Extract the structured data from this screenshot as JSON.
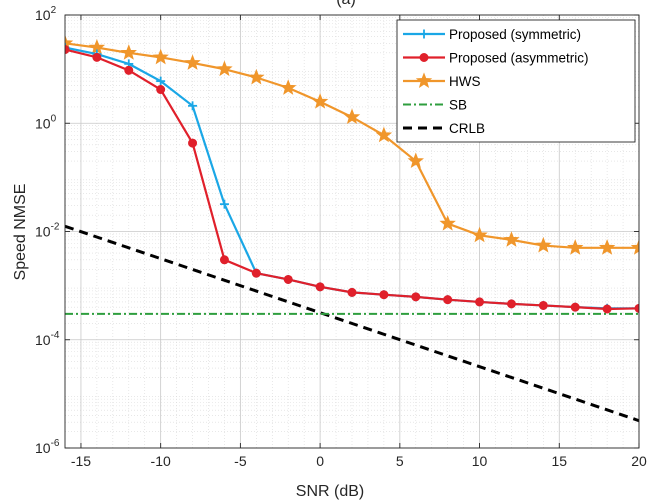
{
  "chart_data": {
    "type": "line",
    "title": "(a)",
    "xlabel": "SNR (dB)",
    "ylabel": "Speed NMSE",
    "xlim": [
      -16,
      20
    ],
    "ylim": [
      1e-06,
      100
    ],
    "yscale": "log",
    "grid": true,
    "minor_grid": true,
    "legend_position": "top-right",
    "x_ticks": [
      -15,
      -10,
      -5,
      0,
      5,
      10,
      15,
      20
    ],
    "x_tick_labels": [
      "-15",
      "-10",
      "-5",
      "0",
      "5",
      "10",
      "15",
      "20"
    ],
    "y_ticks": [
      1e-06,
      0.0001,
      0.01,
      1,
      100
    ],
    "y_tick_labels": [
      {
        "base": "10",
        "exp": "-6"
      },
      {
        "base": "10",
        "exp": "-4"
      },
      {
        "base": "10",
        "exp": "-2"
      },
      {
        "base": "10",
        "exp": "0"
      },
      {
        "base": "10",
        "exp": "2"
      }
    ],
    "series": [
      {
        "name": "Proposed (symmetric)",
        "color": "#1aa7e6",
        "marker": "plus",
        "line_style": "solid",
        "x": [
          -16,
          -14,
          -12,
          -10,
          -8,
          -6,
          -4,
          -2,
          0,
          2,
          4,
          6,
          8,
          10,
          12,
          14,
          16,
          18,
          20
        ],
        "y": [
          25,
          19,
          12.5,
          6.0,
          2.1,
          0.032,
          0.0017,
          0.0013,
          0.00095,
          0.00075,
          0.00068,
          0.00062,
          0.00055,
          0.0005,
          0.00046,
          0.00043,
          0.0004,
          0.00038,
          0.00038
        ]
      },
      {
        "name": "Proposed (asymmetric)",
        "color": "#e0202b",
        "marker": "circle",
        "line_style": "solid",
        "x": [
          -16,
          -14,
          -12,
          -10,
          -8,
          -6,
          -4,
          -2,
          0,
          2,
          4,
          6,
          8,
          10,
          12,
          14,
          16,
          18,
          20
        ],
        "y": [
          23,
          16.5,
          9.5,
          4.2,
          0.43,
          0.003,
          0.0017,
          0.0013,
          0.00095,
          0.00075,
          0.00068,
          0.00062,
          0.00055,
          0.0005,
          0.00046,
          0.00043,
          0.0004,
          0.00037,
          0.00038
        ]
      },
      {
        "name": "HWS",
        "color": "#f0962b",
        "marker": "star",
        "line_style": "solid",
        "x": [
          -16,
          -14,
          -12,
          -10,
          -8,
          -6,
          -4,
          -2,
          0,
          2,
          4,
          6,
          8,
          10,
          12,
          14,
          16,
          18,
          20
        ],
        "y": [
          30,
          25,
          20,
          16.5,
          13,
          10,
          7.0,
          4.5,
          2.5,
          1.3,
          0.6,
          0.2,
          0.014,
          0.0085,
          0.007,
          0.0055,
          0.005,
          0.005,
          0.005
        ]
      },
      {
        "name": "SB",
        "color": "#2e9e3e",
        "marker": "none",
        "line_style": "dashdot",
        "x": [
          -16,
          20
        ],
        "y": [
          0.0003,
          0.0003
        ]
      },
      {
        "name": "CRLB",
        "color": "#000000",
        "marker": "none",
        "line_style": "dashed",
        "x": [
          -16,
          20
        ],
        "y": [
          0.0125,
          3.2e-06
        ]
      }
    ]
  }
}
